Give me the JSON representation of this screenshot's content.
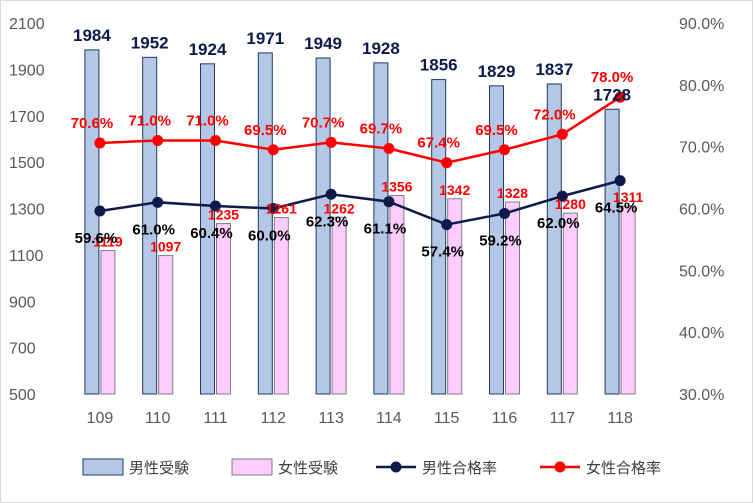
{
  "chart_data": {
    "type": "bar",
    "title": "",
    "categories": [
      "109",
      "110",
      "111",
      "112",
      "113",
      "114",
      "115",
      "116",
      "117",
      "118"
    ],
    "y_left": {
      "min": 500,
      "max": 2100,
      "ticks": [
        "500",
        "700",
        "900",
        "1100",
        "1300",
        "1500",
        "1700",
        "1900",
        "2100"
      ]
    },
    "y_right": {
      "min": 30,
      "max": 90,
      "ticks": [
        "30.0%",
        "40.0%",
        "50.0%",
        "60.0%",
        "70.0%",
        "80.0%",
        "90.0%"
      ]
    },
    "series": [
      {
        "name": "男性受験",
        "kind": "bar",
        "axis": "left",
        "color": "#b4c7e7",
        "border": "#1f3864",
        "values": [
          1984,
          1952,
          1924,
          1971,
          1949,
          1928,
          1856,
          1829,
          1837,
          1728
        ],
        "labels": [
          "1984",
          "1952",
          "1924",
          "1971",
          "1949",
          "1928",
          "1856",
          "1829",
          "1837",
          "1728"
        ]
      },
      {
        "name": "女性受験",
        "kind": "bar",
        "axis": "left",
        "color": "#ffccff",
        "border": "#7f7f7f",
        "values": [
          1119,
          1097,
          1235,
          1261,
          1262,
          1356,
          1342,
          1328,
          1280,
          1311
        ],
        "labels": [
          "1119",
          "1097",
          "1235",
          "1261",
          "1262",
          "1356",
          "1342",
          "1328",
          "1280",
          "1311"
        ]
      },
      {
        "name": "男性合格率",
        "kind": "line",
        "axis": "right",
        "color": "#0d1b4a",
        "values": [
          59.6,
          61.0,
          60.4,
          60.0,
          62.3,
          61.1,
          57.4,
          59.2,
          62.0,
          64.5
        ],
        "labels": [
          "59.6%",
          "61.0%",
          "60.4%",
          "60.0%",
          "62.3%",
          "61.1%",
          "57.4%",
          "59.2%",
          "62.0%",
          "64.5%"
        ]
      },
      {
        "name": "女性合格率",
        "kind": "line",
        "axis": "right",
        "color": "#ff0000",
        "values": [
          70.6,
          71.0,
          71.0,
          69.5,
          70.7,
          69.7,
          67.4,
          69.5,
          72.0,
          78.0
        ],
        "labels": [
          "70.6%",
          "71.0%",
          "71.0%",
          "69.5%",
          "70.7%",
          "69.7%",
          "67.4%",
          "69.5%",
          "72.0%",
          "78.0%"
        ]
      }
    ],
    "legend_position": "bottom",
    "grid": false
  }
}
